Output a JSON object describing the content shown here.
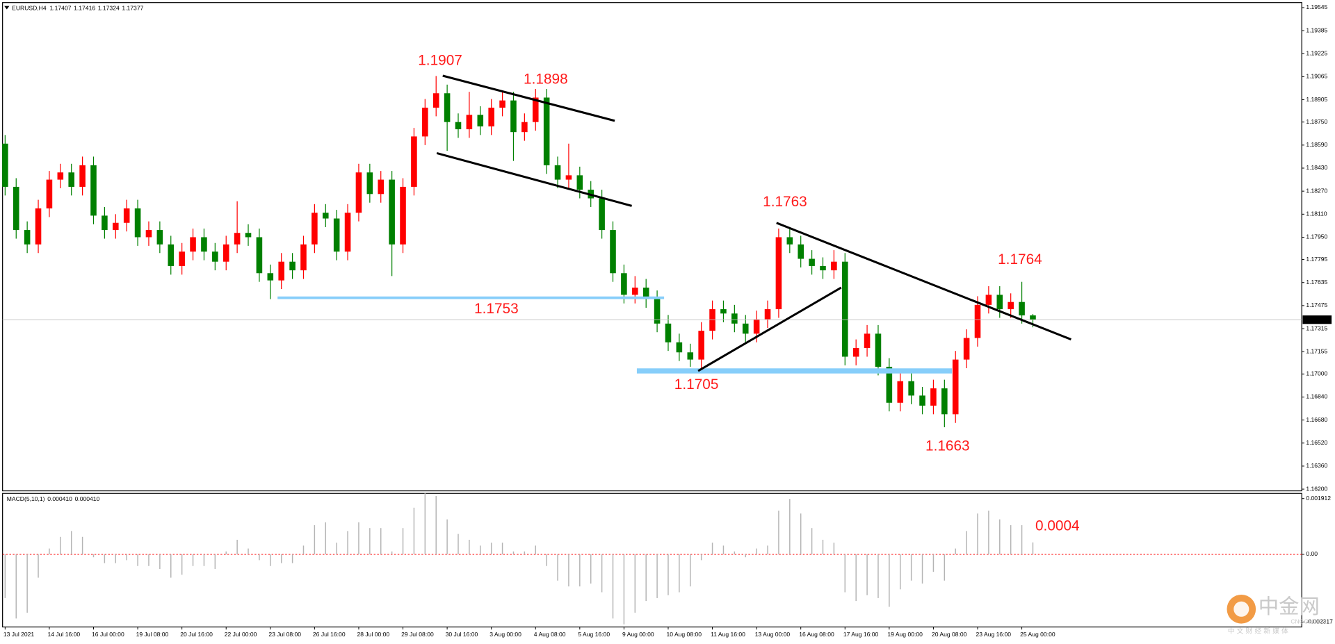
{
  "chart_data": [
    {
      "type": "candlestick",
      "title": "EURUSD,H4",
      "categories": [
        "13 Jul 2021",
        null,
        null,
        null,
        "14 Jul 16:00",
        null,
        null,
        null,
        "16 Jul 00:00",
        null,
        null,
        null,
        "19 Jul 08:00",
        null,
        null,
        null,
        "20 Jul 16:00",
        null,
        null,
        null,
        "22 Jul 00:00",
        null,
        null,
        null,
        "23 Jul 08:00",
        null,
        null,
        null,
        "26 Jul 16:00",
        null,
        null,
        null,
        "28 Jul 00:00",
        null,
        null,
        null,
        "29 Jul 08:00",
        null,
        null,
        null,
        "30 Jul 16:00",
        null,
        null,
        null,
        "3 Aug 00:00",
        null,
        null,
        null,
        "4 Aug 08:00",
        null,
        null,
        null,
        "5 Aug 16:00",
        null,
        null,
        null,
        "9 Aug 00:00",
        null,
        null,
        null,
        "10 Aug 08:00",
        null,
        null,
        null,
        "11 Aug 16:00",
        null,
        null,
        null,
        "13 Aug 00:00",
        null,
        null,
        null,
        "16 Aug 08:00",
        null,
        null,
        null,
        "17 Aug 16:00",
        null,
        null,
        null,
        "19 Aug 00:00",
        null,
        null,
        null,
        "20 Aug 08:00",
        null,
        null,
        null,
        "23 Aug 16:00",
        null,
        null,
        null,
        "25 Aug 00:00",
        null
      ],
      "open": [
        1.186,
        1.183,
        1.18,
        1.179,
        1.1815,
        1.1835,
        1.184,
        1.183,
        1.1845,
        1.181,
        1.18,
        1.1805,
        1.1815,
        1.1795,
        1.18,
        1.179,
        1.1775,
        1.1785,
        1.1795,
        1.1785,
        1.1778,
        1.179,
        1.1798,
        1.1795,
        1.177,
        1.1765,
        1.1778,
        1.1772,
        1.179,
        1.1812,
        1.1808,
        1.1785,
        1.1812,
        1.184,
        1.1825,
        1.1835,
        1.179,
        1.183,
        1.1865,
        1.1885,
        1.1895,
        1.1875,
        1.187,
        1.188,
        1.1872,
        1.1885,
        1.189,
        1.1868,
        1.1875,
        1.1892,
        1.1845,
        1.1835,
        1.1838,
        1.1828,
        1.1822,
        1.18,
        1.177,
        1.1755,
        1.176,
        1.1752,
        1.1735,
        1.1722,
        1.1715,
        1.171,
        1.173,
        1.1745,
        1.1742,
        1.1735,
        1.1728,
        1.1738,
        1.1745,
        1.1795,
        1.179,
        1.178,
        1.1775,
        1.1772,
        1.1778,
        1.1712,
        1.1718,
        1.1728,
        1.1705,
        1.168,
        1.1695,
        1.1685,
        1.1678,
        1.169,
        1.1672,
        1.171,
        1.1725,
        1.1748,
        1.1755,
        1.1745,
        1.175,
        1.17407
      ],
      "high": [
        1.1866,
        1.1836,
        1.1806,
        1.1821,
        1.1841,
        1.1846,
        1.1846,
        1.1851,
        1.1851,
        1.1816,
        1.1811,
        1.1821,
        1.1821,
        1.1806,
        1.1806,
        1.1796,
        1.1791,
        1.1801,
        1.1801,
        1.1791,
        1.1796,
        1.182,
        1.1804,
        1.1801,
        1.1776,
        1.1784,
        1.1784,
        1.1796,
        1.1818,
        1.1818,
        1.1814,
        1.1818,
        1.1846,
        1.1846,
        1.1841,
        1.1841,
        1.1836,
        1.1871,
        1.1891,
        1.1907,
        1.1901,
        1.1881,
        1.1896,
        1.1886,
        1.1891,
        1.1896,
        1.1896,
        1.1881,
        1.1898,
        1.1898,
        1.1851,
        1.186,
        1.1844,
        1.1834,
        1.1828,
        1.1806,
        1.1776,
        1.1768,
        1.1766,
        1.1758,
        1.1741,
        1.1728,
        1.1721,
        1.1736,
        1.1751,
        1.1751,
        1.1748,
        1.1741,
        1.1744,
        1.1751,
        1.1801,
        1.1801,
        1.1796,
        1.1786,
        1.1781,
        1.1786,
        1.1784,
        1.1724,
        1.1734,
        1.1734,
        1.1711,
        1.1701,
        1.1701,
        1.1691,
        1.1696,
        1.1696,
        1.1716,
        1.1731,
        1.1754,
        1.1761,
        1.1761,
        1.1756,
        1.1764,
        1.17416
      ],
      "low": [
        1.1824,
        1.1794,
        1.1784,
        1.1784,
        1.1809,
        1.1829,
        1.1824,
        1.1824,
        1.1804,
        1.1794,
        1.1794,
        1.1799,
        1.1789,
        1.1789,
        1.1784,
        1.1769,
        1.1769,
        1.1779,
        1.1779,
        1.1772,
        1.1772,
        1.1784,
        1.1789,
        1.1764,
        1.1752,
        1.1759,
        1.1766,
        1.1766,
        1.1784,
        1.1802,
        1.1779,
        1.1779,
        1.1806,
        1.1819,
        1.1819,
        1.1768,
        1.1784,
        1.1824,
        1.1859,
        1.1879,
        1.1855,
        1.1864,
        1.1864,
        1.1866,
        1.1866,
        1.1879,
        1.1848,
        1.1862,
        1.1869,
        1.1839,
        1.1829,
        1.1829,
        1.1822,
        1.1816,
        1.1794,
        1.1764,
        1.1749,
        1.1749,
        1.1746,
        1.1729,
        1.1716,
        1.1709,
        1.1705,
        1.1704,
        1.1724,
        1.1736,
        1.1729,
        1.1722,
        1.1722,
        1.1732,
        1.1739,
        1.1784,
        1.1774,
        1.1769,
        1.1766,
        1.1766,
        1.1706,
        1.1706,
        1.1712,
        1.1699,
        1.1674,
        1.1674,
        1.1679,
        1.1672,
        1.1672,
        1.1663,
        1.1666,
        1.1704,
        1.1719,
        1.1742,
        1.1739,
        1.1739,
        1.1735,
        1.17324
      ],
      "close": [
        1.183,
        1.18,
        1.179,
        1.1815,
        1.1835,
        1.184,
        1.183,
        1.1845,
        1.181,
        1.18,
        1.1805,
        1.1815,
        1.1795,
        1.18,
        1.179,
        1.1775,
        1.1785,
        1.1795,
        1.1785,
        1.1778,
        1.179,
        1.1798,
        1.1795,
        1.177,
        1.1765,
        1.1778,
        1.1772,
        1.179,
        1.1812,
        1.1808,
        1.1785,
        1.1812,
        1.184,
        1.1825,
        1.1835,
        1.179,
        1.183,
        1.1865,
        1.1885,
        1.1895,
        1.1875,
        1.187,
        1.188,
        1.1872,
        1.1885,
        1.189,
        1.1868,
        1.1875,
        1.1892,
        1.1845,
        1.1835,
        1.1838,
        1.1828,
        1.1822,
        1.18,
        1.177,
        1.1755,
        1.176,
        1.1752,
        1.1735,
        1.1722,
        1.1715,
        1.171,
        1.173,
        1.1745,
        1.1742,
        1.1735,
        1.1728,
        1.1738,
        1.1745,
        1.1795,
        1.179,
        1.178,
        1.1775,
        1.1772,
        1.1778,
        1.1712,
        1.1718,
        1.1728,
        1.1705,
        1.168,
        1.1695,
        1.1685,
        1.1678,
        1.169,
        1.1672,
        1.171,
        1.1725,
        1.1748,
        1.1755,
        1.1745,
        1.175,
        1.17407,
        1.17377
      ],
      "up_color": "#ff0000",
      "down_color": "#008000",
      "ylim": [
        1.16188,
        1.1958
      ],
      "yticks": [
        1.19545,
        1.19385,
        1.19225,
        1.19065,
        1.18905,
        {
          "value": 1.1875,
          "label": "1.18750"
        },
        {
          "value": 1.1859,
          "label": "1.18590"
        },
        {
          "value": 1.1843,
          "label": "1.18430"
        },
        {
          "value": 1.1827,
          "label": "1.18270"
        },
        {
          "value": 1.1811,
          "label": "1.18110"
        },
        {
          "value": 1.1795,
          "label": "1.17950"
        },
        1.17795,
        1.17635,
        1.17475,
        1.17315,
        1.17155,
        {
          "value": 1.17,
          "label": "1.17000"
        },
        {
          "value": 1.1684,
          "label": "1.16840"
        },
        {
          "value": 1.1668,
          "label": "1.16680"
        },
        {
          "value": 1.1652,
          "label": "1.16520"
        },
        {
          "value": 1.1636,
          "label": "1.16360"
        },
        {
          "value": 1.162,
          "label": "1.16200"
        }
      ],
      "grid": false,
      "annotations": [
        "1.1907",
        "1.1898",
        "1.1763",
        "1.1764",
        "1.1753",
        "1.1705",
        "1.1663"
      ]
    },
    {
      "type": "bar",
      "title": "MACD(5,10,1)",
      "readout": [
        "0.000410",
        "0.000410"
      ],
      "values": [
        -0.0015,
        -0.0022,
        -0.002,
        -0.0008,
        0.0002,
        0.0006,
        0.0008,
        0.0006,
        -0.0001,
        -0.0003,
        -0.0003,
        -0.0002,
        -0.0004,
        -0.0004,
        -0.0005,
        -0.0008,
        -0.0007,
        -0.0004,
        -0.0004,
        -0.0005,
        0.0001,
        0.0005,
        0.0002,
        -0.0002,
        -0.0004,
        -0.0003,
        -0.0003,
        0.0003,
        0.001,
        0.0011,
        0.0004,
        0.0008,
        0.0011,
        0.0009,
        0.0009,
        0.0001,
        0.0009,
        0.0016,
        0.0021,
        0.002,
        0.0012,
        0.0007,
        0.0005,
        0.0003,
        0.0004,
        0.0004,
        0.0001,
        0.0001,
        0.0003,
        -0.0004,
        -0.0009,
        -0.0011,
        -0.0011,
        -0.001,
        -0.0013,
        -0.0022,
        -0.0024,
        -0.002,
        -0.0016,
        -0.0015,
        -0.0014,
        -0.0013,
        -0.0011,
        -0.0002,
        0.0004,
        0.0003,
        0.0001,
        -0.0001,
        0.0002,
        0.0003,
        0.0015,
        0.0019,
        0.0014,
        0.0009,
        0.0005,
        0.0004,
        -0.0013,
        -0.0016,
        -0.0014,
        -0.0015,
        -0.0018,
        -0.0012,
        -0.0009,
        -0.001,
        -0.0006,
        -0.0009,
        0.0002,
        0.0008,
        0.0014,
        0.0015,
        0.0012,
        0.001,
        0.001,
        0.00041
      ],
      "color": "#b4b4b4",
      "zero_color": "#ff0000",
      "ylim": [
        -0.00249,
        0.00209
      ],
      "yticks": [
        0.001912,
        {
          "value": 0,
          "label": "0.00"
        },
        -0.002317
      ],
      "annotations": [
        "0.0004"
      ]
    }
  ],
  "watermark": {
    "brand": "中金网",
    "site": "CNGOLD.CN",
    "slogan": "中 文 财 经 新 媒 体"
  }
}
